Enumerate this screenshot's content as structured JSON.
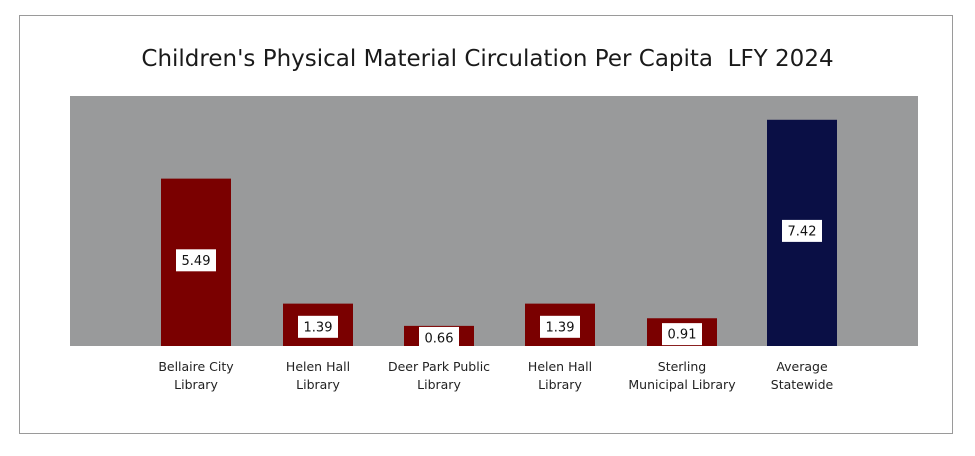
{
  "chart_data": {
    "type": "bar",
    "title": "Children's Physical Material Circulation Per Capita  LFY 2024",
    "xlabel": "",
    "ylabel": "",
    "ylim": [
      0,
      8.2
    ],
    "grid": false,
    "legend": "none",
    "categories": [
      [
        "Bellaire City",
        "Library"
      ],
      [
        "Helen Hall",
        "Library"
      ],
      [
        "Deer Park Public",
        "Library"
      ],
      [
        "Helen Hall",
        "Library"
      ],
      [
        "Sterling",
        "Municipal Library"
      ],
      [
        "Average",
        "Statewide"
      ]
    ],
    "values": [
      5.49,
      1.39,
      0.66,
      1.39,
      0.91,
      7.42
    ],
    "value_labels": [
      "5.49",
      "1.39",
      "0.66",
      "1.39",
      "0.91",
      "7.42"
    ],
    "bar_colors": [
      "#7a0000",
      "#7a0000",
      "#7a0000",
      "#7a0000",
      "#7a0000",
      "#0a0f45"
    ],
    "plot_background": "#999a9b"
  }
}
